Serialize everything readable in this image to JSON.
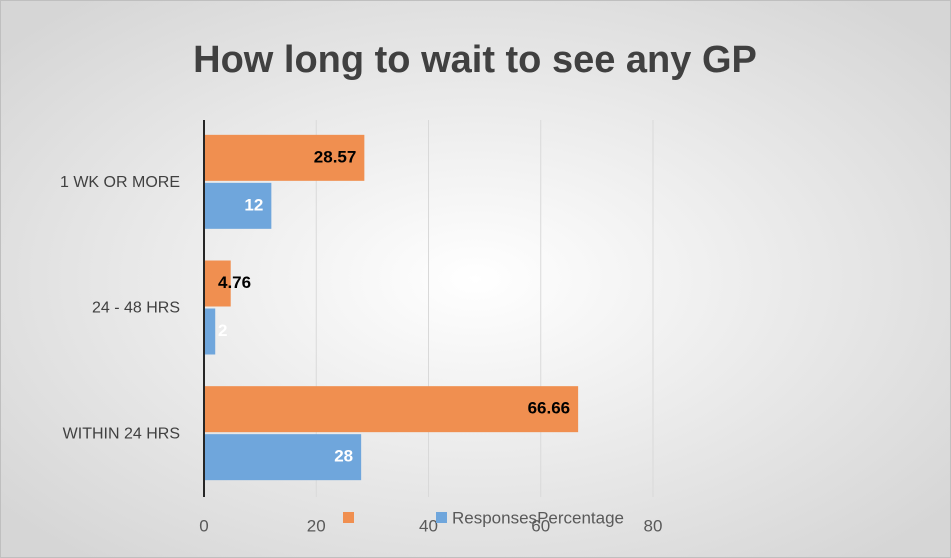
{
  "chart_data": {
    "type": "bar",
    "orientation": "horizontal",
    "title": "How long to wait to see any GP",
    "categories": [
      "1 WK OR MORE",
      "24 - 48 HRS",
      "WITHIN 24 HRS"
    ],
    "series": [
      {
        "name": "Responses",
        "color": "#6fa6dc",
        "values": [
          12,
          2,
          28
        ]
      },
      {
        "name": "Percentage",
        "color": "#f08f50",
        "values": [
          28.57,
          4.76,
          66.66
        ]
      }
    ],
    "xlim": [
      0,
      80
    ],
    "xticks": [
      0,
      20,
      40,
      60,
      80
    ],
    "grid": true,
    "legend": "bottom"
  }
}
